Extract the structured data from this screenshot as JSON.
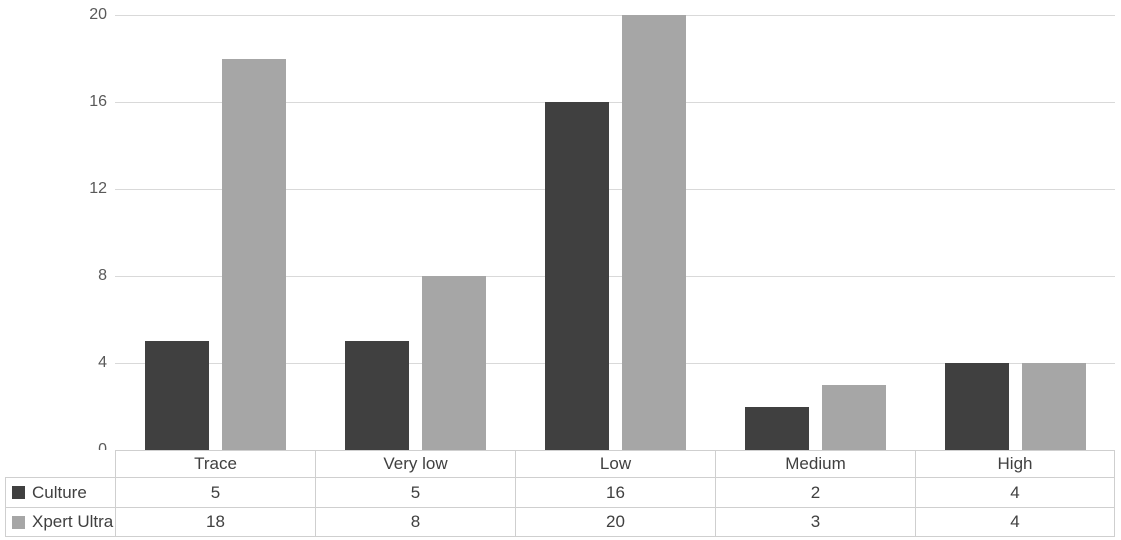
{
  "chart_data": {
    "type": "bar",
    "title": "",
    "xlabel": "",
    "ylabel": "",
    "categories": [
      "Trace",
      "Very low",
      "Low",
      "Medium",
      "High"
    ],
    "series": [
      {
        "name": "Culture",
        "color": "#404040",
        "values": [
          5,
          5,
          16,
          2,
          4
        ]
      },
      {
        "name": "Xpert Ultra",
        "color": "#a6a6a6",
        "values": [
          18,
          8,
          20,
          3,
          4
        ]
      }
    ],
    "ylim": [
      0,
      20
    ],
    "yticks": [
      0,
      4,
      8,
      12,
      16,
      20
    ],
    "grid": true,
    "legend_position": "table-left-column",
    "colors": {
      "gridline": "#d9d9d9",
      "axis_text": "#595959",
      "table_text": "#404040",
      "table_border": "#cfcfcf",
      "background": "#ffffff"
    }
  }
}
